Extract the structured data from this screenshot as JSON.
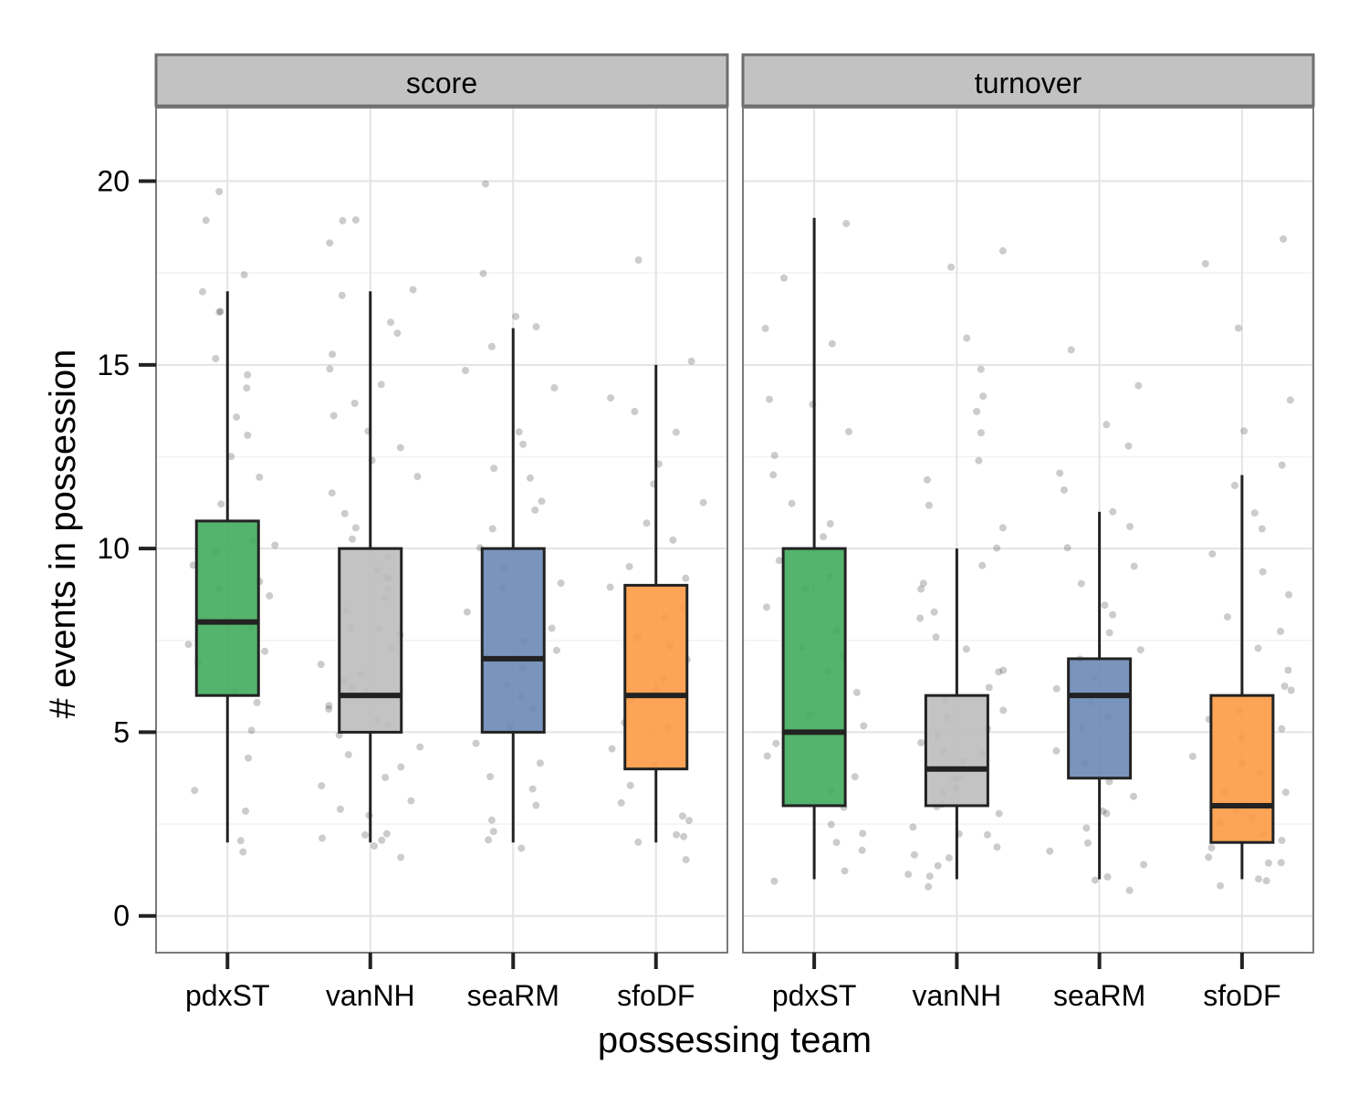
{
  "chart_data": {
    "type": "boxplot",
    "xlabel": "possessing team",
    "ylabel": "# events in possession",
    "ylim": [
      -1,
      22
    ],
    "yticks": [
      0,
      5,
      10,
      15,
      20
    ],
    "categories": [
      "pdxST",
      "vanNH",
      "seaRM",
      "sfoDF"
    ],
    "colors": {
      "pdxST": "#41ab5d",
      "vanNH": "#bdbdbd",
      "seaRM": "#6b8ab6",
      "sfoDF": "#fd9a44"
    },
    "panels": [
      {
        "label": "score",
        "boxes": [
          {
            "team": "pdxST",
            "min": 2,
            "q1": 6,
            "median": 8,
            "q3": 10.75,
            "max": 17
          },
          {
            "team": "vanNH",
            "min": 2,
            "q1": 5,
            "median": 6,
            "q3": 10,
            "max": 17
          },
          {
            "team": "seaRM",
            "min": 2,
            "q1": 5,
            "median": 7,
            "q3": 10,
            "max": 16
          },
          {
            "team": "sfoDF",
            "min": 2,
            "q1": 4,
            "median": 6,
            "q3": 9,
            "max": 15
          }
        ],
        "points": {
          "pdxST": [
            1.8,
            1.9,
            2.8,
            3.3,
            4.2,
            5.1,
            5.9,
            6.2,
            6.8,
            7.1,
            7.4,
            7.9,
            8.1,
            8.6,
            8.9,
            9.2,
            9.6,
            9.9,
            10.1,
            10.3,
            11.1,
            12.0,
            12.4,
            13.2,
            13.7,
            14.4,
            14.8,
            15.2,
            16.3,
            16.6,
            17.1,
            17.6,
            19.0,
            19.8
          ],
          "vanNH": [
            1.6,
            1.8,
            2.0,
            2.1,
            2.2,
            2.3,
            2.6,
            2.9,
            3.1,
            3.5,
            3.8,
            4.0,
            4.3,
            4.6,
            4.9,
            5.1,
            5.3,
            5.5,
            5.8,
            6.0,
            6.1,
            6.3,
            6.6,
            6.9,
            7.2,
            7.5,
            7.7,
            8.0,
            8.3,
            8.6,
            8.9,
            9.1,
            9.3,
            9.5,
            9.8,
            10.2,
            10.6,
            11.0,
            11.5,
            11.9,
            12.3,
            12.8,
            13.2,
            13.5,
            14.1,
            14.5,
            15.0,
            15.4,
            15.8,
            16.2,
            16.9,
            17.1,
            18.2,
            18.8,
            19.0
          ],
          "seaRM": [
            1.7,
            2.0,
            2.2,
            2.6,
            3.0,
            3.4,
            3.9,
            4.3,
            4.7,
            5.2,
            5.6,
            6.0,
            6.3,
            6.8,
            7.1,
            7.5,
            7.9,
            8.3,
            8.8,
            9.2,
            9.5,
            9.9,
            10.4,
            10.9,
            11.3,
            11.8,
            12.1,
            12.8,
            13.3,
            14.3,
            14.8,
            15.4,
            15.9,
            16.2,
            17.6,
            19.8
          ],
          "sfoDF": [
            1.6,
            1.9,
            2.1,
            2.3,
            2.5,
            2.8,
            3.2,
            3.6,
            4.1,
            4.6,
            5.0,
            5.4,
            5.8,
            6.1,
            6.6,
            7.0,
            7.3,
            7.7,
            8.1,
            8.4,
            8.8,
            9.1,
            9.6,
            10.1,
            10.7,
            11.2,
            11.7,
            12.3,
            13.1,
            13.8,
            14.2,
            15.1,
            18.0
          ]
        }
      },
      {
        "label": "turnover",
        "boxes": [
          {
            "team": "pdxST",
            "min": 1,
            "q1": 3,
            "median": 5,
            "q3": 10,
            "max": 19
          },
          {
            "team": "vanNH",
            "min": 1,
            "q1": 3,
            "median": 4,
            "q3": 6,
            "max": 10
          },
          {
            "team": "seaRM",
            "min": 1,
            "q1": 3.75,
            "median": 6,
            "q3": 7,
            "max": 11
          },
          {
            "team": "sfoDF",
            "min": 1,
            "q1": 2,
            "median": 3,
            "q3": 6,
            "max": 12
          }
        ],
        "points": {
          "pdxST": [
            0.8,
            1.2,
            1.7,
            1.9,
            2.2,
            2.6,
            3.0,
            3.4,
            3.8,
            4.3,
            4.8,
            5.2,
            5.6,
            6.1,
            6.5,
            7.0,
            7.4,
            7.9,
            8.3,
            8.8,
            9.3,
            9.8,
            10.3,
            10.8,
            11.3,
            12.1,
            12.6,
            13.3,
            13.8,
            14.0,
            15.6,
            16.1,
            17.3,
            18.8
          ],
          "vanNH": [
            0.8,
            1.0,
            1.2,
            1.4,
            1.6,
            1.8,
            2.0,
            2.1,
            2.3,
            2.5,
            2.7,
            2.9,
            3.1,
            3.3,
            3.5,
            3.7,
            3.9,
            4.1,
            4.3,
            4.5,
            4.7,
            4.9,
            5.1,
            5.3,
            5.6,
            5.9,
            6.2,
            6.5,
            6.8,
            7.2,
            7.6,
            8.0,
            8.4,
            8.8,
            9.2,
            9.6,
            10.1,
            10.6,
            11.2,
            11.9,
            12.4,
            13.1,
            13.6,
            14.2,
            15.0,
            15.8,
            17.8,
            18.1
          ],
          "seaRM": [
            0.6,
            0.9,
            1.2,
            1.5,
            1.8,
            2.1,
            2.4,
            2.7,
            3.0,
            3.4,
            3.8,
            4.2,
            4.6,
            5.0,
            5.3,
            5.7,
            6.1,
            6.5,
            6.9,
            7.3,
            7.8,
            8.2,
            8.6,
            9.1,
            9.6,
            10.0,
            10.5,
            10.9,
            11.5,
            12.0,
            12.9,
            13.4,
            14.4,
            15.3
          ],
          "sfoDF": [
            0.7,
            0.9,
            1.1,
            1.3,
            1.5,
            1.7,
            1.9,
            2.1,
            2.3,
            2.5,
            2.7,
            2.9,
            3.1,
            3.3,
            3.5,
            3.8,
            4.1,
            4.4,
            4.7,
            5.0,
            5.3,
            5.6,
            6.0,
            6.4,
            6.8,
            7.2,
            7.7,
            8.2,
            8.7,
            9.3,
            9.9,
            10.4,
            11.0,
            11.6,
            12.2,
            13.3,
            14.0,
            16.0,
            17.7,
            18.3
          ]
        }
      }
    ]
  }
}
